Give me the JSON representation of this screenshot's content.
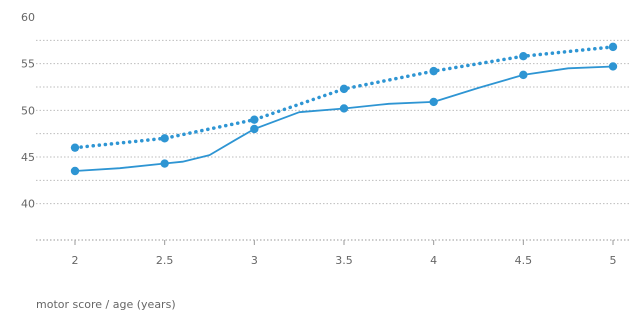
{
  "caption": "motor score / age (years)",
  "chart_data": {
    "type": "line",
    "x_ticks": [
      "2",
      "2.5",
      "3",
      "3.5",
      "4",
      "4.5",
      "5"
    ],
    "y_ticks": [
      "40",
      "45",
      "50",
      "55",
      "60"
    ],
    "xlim": [
      2,
      5
    ],
    "ylim": [
      37.5,
      60
    ],
    "grid": true,
    "series": [
      {
        "style": "dotted",
        "color": "#2e95d3",
        "points": [
          [
            2,
            46.0
          ],
          [
            2.5,
            47.0
          ],
          [
            3,
            49.0
          ],
          [
            3.5,
            52.3
          ],
          [
            4,
            54.2
          ],
          [
            4.5,
            55.8
          ],
          [
            5,
            56.8
          ]
        ],
        "markers": [
          [
            2,
            46.0
          ],
          [
            2.5,
            47.0
          ],
          [
            3,
            49.0
          ],
          [
            3.5,
            52.3
          ],
          [
            4,
            54.2
          ],
          [
            4.5,
            55.8
          ],
          [
            5,
            56.8
          ]
        ]
      },
      {
        "style": "solid",
        "color": "#2e95d3",
        "points": [
          [
            2,
            43.5
          ],
          [
            2.25,
            43.8
          ],
          [
            2.5,
            44.3
          ],
          [
            2.6,
            44.5
          ],
          [
            2.75,
            45.2
          ],
          [
            2.9,
            46.9
          ],
          [
            3,
            48.0
          ],
          [
            3.25,
            49.8
          ],
          [
            3.5,
            50.2
          ],
          [
            3.75,
            50.7
          ],
          [
            4,
            50.9
          ],
          [
            4.25,
            52.4
          ],
          [
            4.5,
            53.8
          ],
          [
            4.75,
            54.5
          ],
          [
            5,
            54.7
          ]
        ],
        "markers": [
          [
            2,
            43.5
          ],
          [
            2.5,
            44.3
          ],
          [
            3,
            48.0
          ],
          [
            3.5,
            50.2
          ],
          [
            4,
            50.9
          ],
          [
            4.5,
            53.8
          ],
          [
            5,
            54.7
          ]
        ]
      }
    ]
  }
}
